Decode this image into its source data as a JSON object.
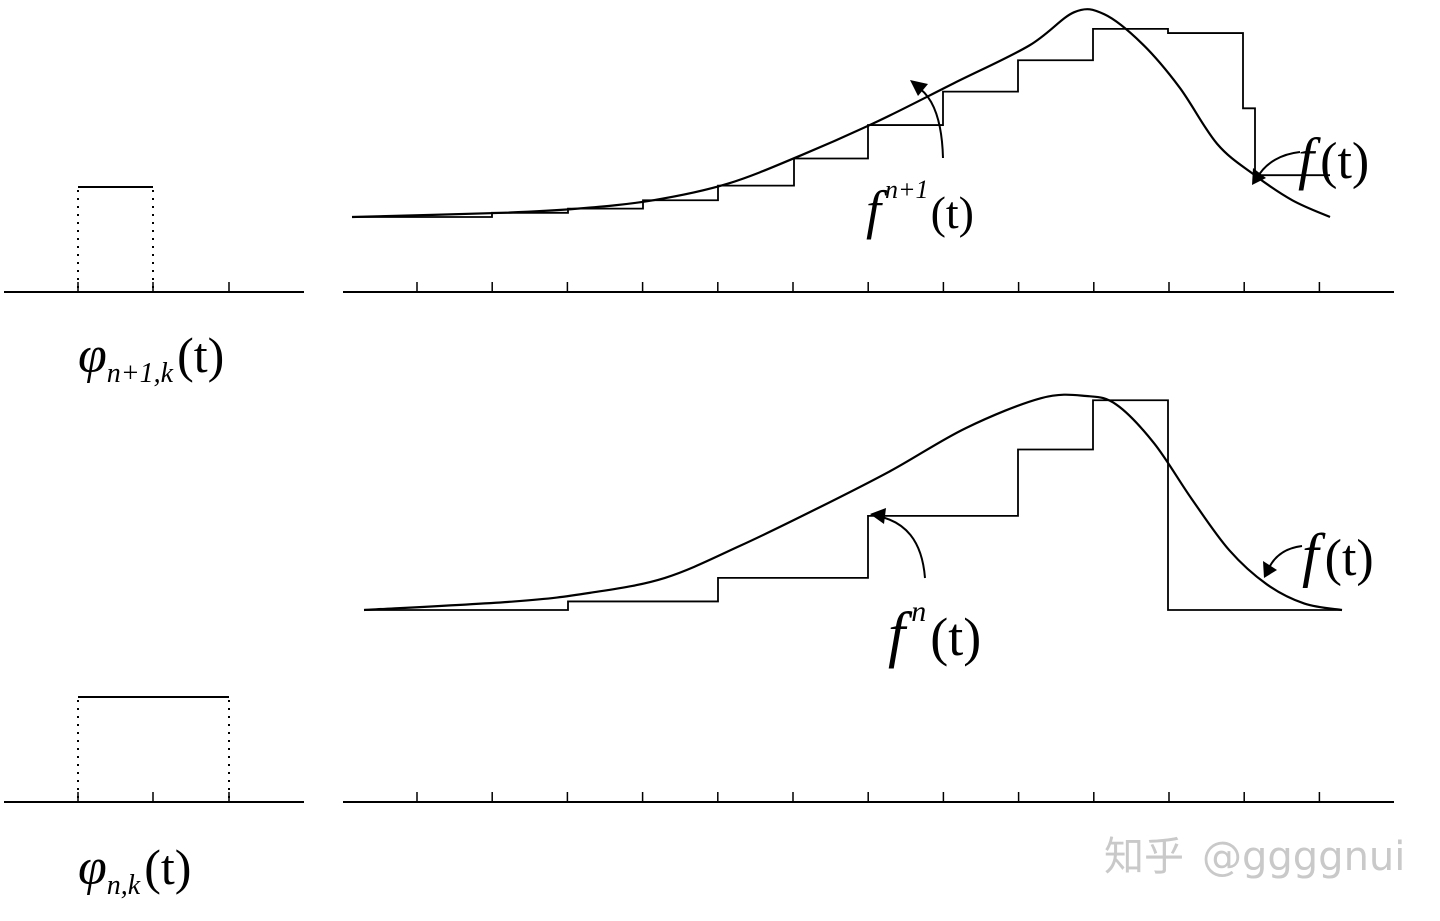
{
  "labels": {
    "phi_top": {
      "sym": "φ",
      "sub": "n+1,k",
      "arg": "(t)"
    },
    "phi_bottom": {
      "sym": "φ",
      "sub": "n,k",
      "arg": "(t)"
    },
    "f_top": {
      "sym": "f",
      "arg": "(t)"
    },
    "f_bottom": {
      "sym": "f",
      "arg": "(t)"
    },
    "fn1": {
      "sym": "f",
      "sup": "n+1",
      "arg": "(t)"
    },
    "fn": {
      "sym": "f",
      "sup": "n",
      "arg": "(t)"
    }
  },
  "watermark": {
    "brand": "知乎",
    "handle": "@ggggnui"
  },
  "panels": {
    "fine": {
      "step_heights": [
        0,
        0.02,
        0.04,
        0.08,
        0.15,
        0.28,
        0.44,
        0.6,
        0.75,
        0.9,
        0.88,
        0.52,
        0.2
      ],
      "curve": [
        [
          0,
          0
        ],
        [
          2,
          0.02
        ],
        [
          3,
          0.04
        ],
        [
          4,
          0.08
        ],
        [
          5,
          0.16
        ],
        [
          6,
          0.3
        ],
        [
          7,
          0.46
        ],
        [
          8,
          0.64
        ],
        [
          9,
          0.82
        ],
        [
          9.6,
          0.98
        ],
        [
          10,
          0.97
        ],
        [
          10.5,
          0.83
        ],
        [
          11,
          0.62
        ],
        [
          11.5,
          0.35
        ],
        [
          12,
          0.2
        ],
        [
          12.5,
          0.08
        ],
        [
          13,
          0
        ]
      ]
    },
    "coarse": {
      "step_heights": [
        0,
        0.04,
        0.15,
        0.44,
        0.75,
        0.98,
        0.98,
        0
      ],
      "curve": [
        [
          0,
          0
        ],
        [
          2,
          0.04
        ],
        [
          3,
          0.08
        ],
        [
          4,
          0.15
        ],
        [
          5,
          0.3
        ],
        [
          6,
          0.47
        ],
        [
          7,
          0.65
        ],
        [
          8,
          0.85
        ],
        [
          9,
          0.99
        ],
        [
          9.6,
          1
        ],
        [
          10,
          0.96
        ],
        [
          10.5,
          0.78
        ],
        [
          11,
          0.52
        ],
        [
          11.5,
          0.28
        ],
        [
          12,
          0.12
        ],
        [
          12.5,
          0.03
        ],
        [
          13,
          0
        ]
      ]
    }
  }
}
